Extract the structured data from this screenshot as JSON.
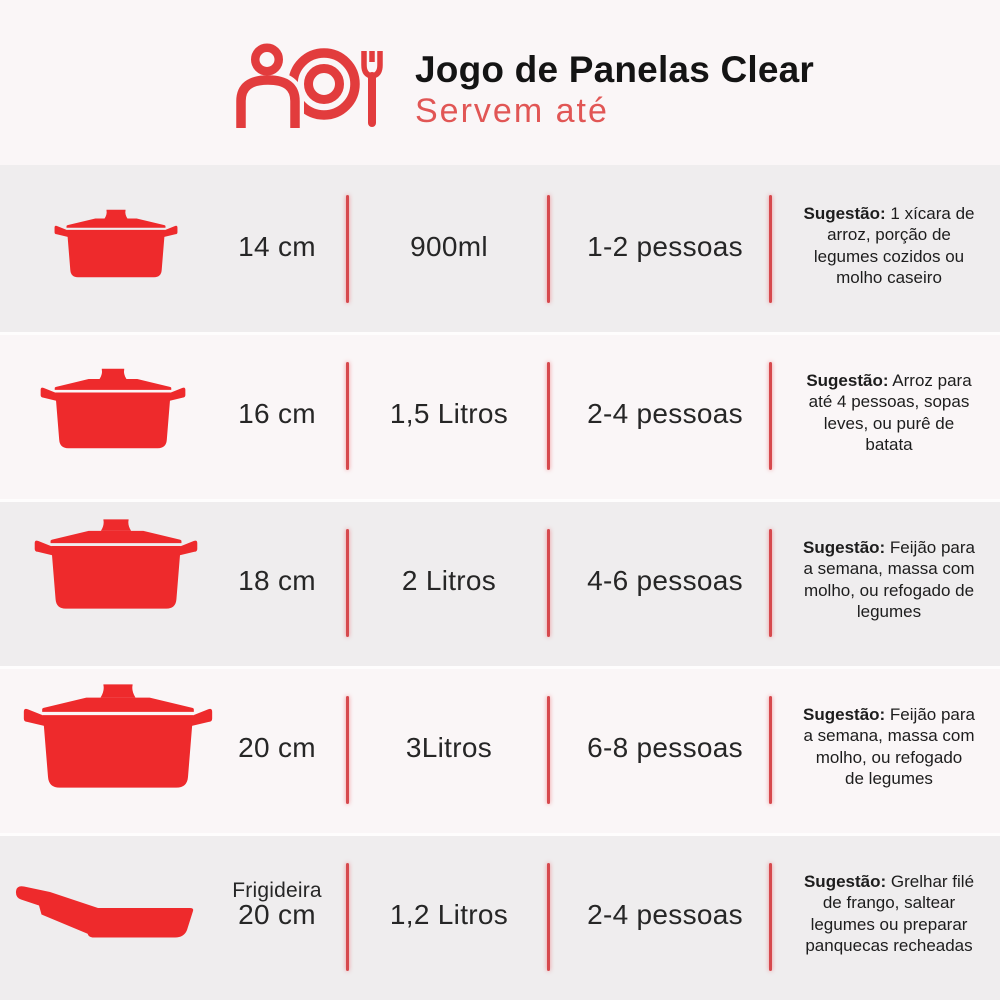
{
  "colors": {
    "background": "#faf6f7",
    "row_shade": "#efedee",
    "accent_red": "#ee2a2c",
    "icon_stroke_red": "#e23c3d",
    "divider_red": "#d6494d",
    "title_black": "#141414",
    "subtitle_red": "#e15655",
    "text_dark": "#262626"
  },
  "header": {
    "icon": "person-plate-fork",
    "title": "Jogo de Panelas Clear",
    "subtitle": "Servem até"
  },
  "table": {
    "columns": [
      "pot-icon",
      "diameter",
      "volume",
      "serves",
      "suggestion"
    ],
    "rows": [
      {
        "icon": "casserole-pot",
        "size": "14 cm",
        "volume": "900ml",
        "serves": "1-2 pessoas",
        "suggestion_label": "Sugestão:",
        "suggestion_lines": [
          "1 xícara de",
          "arroz, porção de",
          "legumes cozidos ou",
          "molho caseiro"
        ]
      },
      {
        "icon": "casserole-pot",
        "size": "16 cm",
        "volume": "1,5 Litros",
        "serves": "2-4 pessoas",
        "suggestion_label": "Sugestão:",
        "suggestion_lines": [
          "Arroz para",
          "até 4 pessoas, sopas",
          "leves, ou purê de",
          "batata"
        ]
      },
      {
        "icon": "casserole-pot",
        "size": "18 cm",
        "volume": "2 Litros",
        "serves": "4-6 pessoas",
        "suggestion_label": "Sugestão:",
        "suggestion_lines": [
          "Feijão para",
          "a semana, massa com",
          "molho, ou refogado de",
          "legumes"
        ]
      },
      {
        "icon": "casserole-pot",
        "size": "20 cm",
        "volume": "3Litros",
        "serves": "6-8 pessoas",
        "suggestion_label": "Sugestão:",
        "suggestion_lines": [
          "Feijão para",
          "a semana, massa com",
          "molho, ou refogado",
          "de legumes"
        ]
      },
      {
        "icon": "frying-pan",
        "size_type": "Frigideira",
        "size": "20 cm",
        "volume": "1,2 Litros",
        "serves": "2-4 pessoas",
        "suggestion_label": "Sugestão:",
        "suggestion_lines": [
          "Grelhar filé",
          "de frango, saltear",
          "legumes ou preparar",
          "panquecas recheadas"
        ]
      }
    ]
  }
}
